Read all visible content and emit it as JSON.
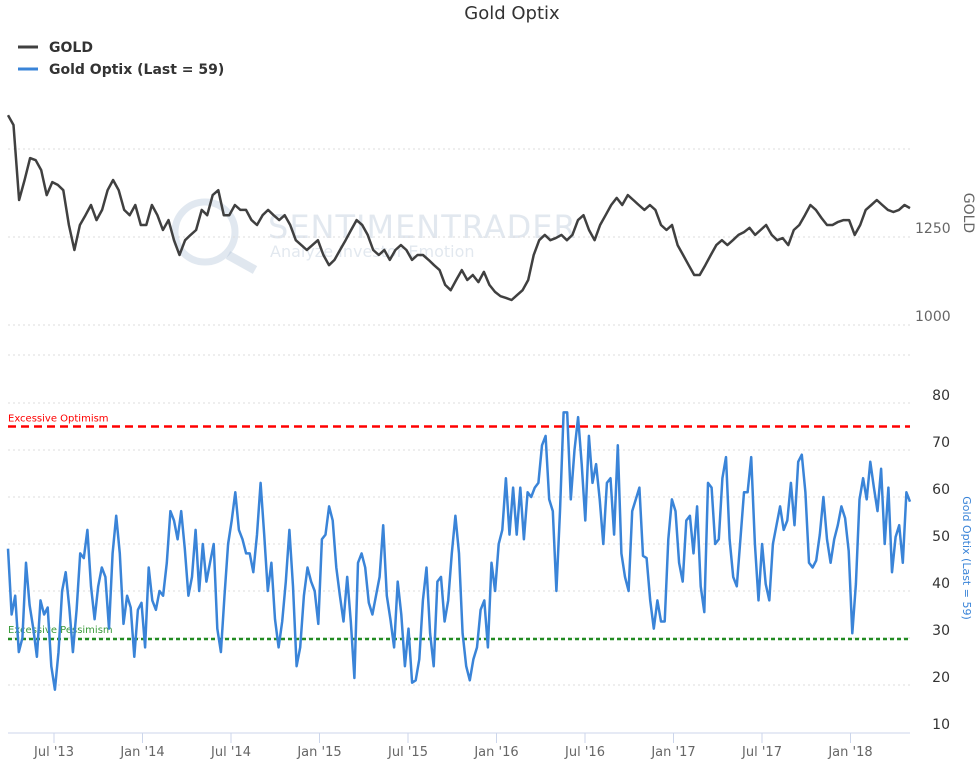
{
  "chart_data": {
    "type": "line",
    "title": "Gold Optix",
    "legend": [
      "GOLD",
      "Gold Optix (Last = 59)"
    ],
    "legend_position": "top-left",
    "x_range": [
      2013.27,
      2018.33
    ],
    "x_ticks": [
      {
        "label": "Jul '13",
        "t": 2013.5
      },
      {
        "label": "Jan '14",
        "t": 2014.0
      },
      {
        "label": "Jul '14",
        "t": 2014.5
      },
      {
        "label": "Jan '15",
        "t": 2015.0
      },
      {
        "label": "Jul '15",
        "t": 2015.5
      },
      {
        "label": "Jan '16",
        "t": 2016.0
      },
      {
        "label": "Jul '16",
        "t": 2016.5
      },
      {
        "label": "Jan '17",
        "t": 2017.0
      },
      {
        "label": "Jul '17",
        "t": 2017.5
      },
      {
        "label": "Jan '18",
        "t": 2018.0
      }
    ],
    "gold_axis": {
      "title": "GOLD",
      "ticks": [
        "1250",
        "1000"
      ],
      "tick_values": [
        1250,
        1000
      ],
      "grid": [
        1500,
        1250,
        1000
      ]
    },
    "optix_axis": {
      "title": "Gold Optix (Last = 59)",
      "ticks": [
        "80",
        "70",
        "60",
        "50",
        "40",
        "30",
        "20",
        "10"
      ],
      "tick_values": [
        80,
        70,
        60,
        50,
        40,
        30,
        20,
        10
      ],
      "range": [
        10,
        80
      ]
    },
    "annotations": {
      "optimism": {
        "label": "Excessive Optimism",
        "value": 75,
        "color": "#ff0000"
      },
      "pessimism": {
        "label": "Excessive Pessimism",
        "value": 30,
        "color": "#228b22"
      }
    },
    "series": [
      {
        "name": "GOLD",
        "color": "#404040",
        "values": [
          1596,
          1568,
          1355,
          1412,
          1474,
          1468,
          1440,
          1369,
          1406,
          1398,
          1383,
          1284,
          1213,
          1284,
          1312,
          1341,
          1298,
          1327,
          1383,
          1412,
          1383,
          1327,
          1312,
          1341,
          1284,
          1284,
          1341,
          1312,
          1270,
          1298,
          1241,
          1199,
          1241,
          1256,
          1270,
          1327,
          1312,
          1369,
          1383,
          1312,
          1312,
          1341,
          1327,
          1327,
          1298,
          1284,
          1312,
          1327,
          1312,
          1298,
          1312,
          1284,
          1241,
          1227,
          1213,
          1227,
          1241,
          1199,
          1170,
          1185,
          1213,
          1241,
          1270,
          1298,
          1284,
          1256,
          1213,
          1199,
          1213,
          1185,
          1213,
          1227,
          1213,
          1185,
          1199,
          1199,
          1185,
          1170,
          1156,
          1114,
          1099,
          1128,
          1156,
          1128,
          1142,
          1122,
          1151,
          1114,
          1094,
          1082,
          1077,
          1071,
          1085,
          1099,
          1128,
          1199,
          1241,
          1256,
          1241,
          1247,
          1256,
          1241,
          1256,
          1298,
          1312,
          1270,
          1241,
          1284,
          1312,
          1341,
          1361,
          1341,
          1369,
          1355,
          1341,
          1327,
          1341,
          1327,
          1284,
          1270,
          1284,
          1227,
          1199,
          1170,
          1142,
          1142,
          1170,
          1199,
          1227,
          1241,
          1227,
          1241,
          1256,
          1264,
          1276,
          1256,
          1270,
          1284,
          1256,
          1241,
          1247,
          1227,
          1270,
          1284,
          1312,
          1341,
          1327,
          1304,
          1284,
          1284,
          1293,
          1298,
          1298,
          1256,
          1284,
          1327,
          1341,
          1355,
          1341,
          1327,
          1321,
          1327,
          1341,
          1332
        ]
      },
      {
        "name": "Gold Optix",
        "color": "#3a84d8",
        "last": 59,
        "values": [
          49,
          35,
          39,
          27,
          30,
          46,
          37,
          32,
          26,
          38,
          35,
          36.5,
          24,
          19,
          27,
          40,
          44,
          36.5,
          27,
          36,
          48,
          47,
          53,
          41,
          34,
          41,
          45,
          43,
          32,
          48,
          56,
          48,
          33,
          39,
          36.5,
          26,
          36,
          37.5,
          28,
          45,
          38,
          36,
          40,
          39,
          46,
          57,
          55,
          51,
          57,
          49,
          39,
          43,
          53,
          40,
          50,
          42,
          46,
          50,
          32,
          27,
          39,
          50,
          55,
          61,
          53,
          51,
          48,
          48,
          44,
          52,
          63,
          52,
          40,
          46,
          34,
          28,
          33.5,
          42,
          53,
          41,
          24,
          28,
          39,
          45,
          42,
          40,
          33,
          51,
          52,
          58,
          55,
          45,
          39,
          33.5,
          43,
          33.5,
          21.5,
          46,
          48,
          45,
          37.5,
          35,
          39,
          43,
          54,
          39,
          34,
          28,
          42,
          35,
          24,
          32,
          20.5,
          21,
          25.5,
          38,
          45,
          31,
          24,
          42,
          43,
          33.5,
          38,
          48,
          56,
          48,
          31,
          24,
          21,
          25.5,
          28,
          36,
          38,
          28,
          46,
          40,
          50,
          53,
          64,
          52,
          62,
          52,
          62,
          51,
          61,
          60,
          62,
          63,
          71,
          73,
          59.5,
          57,
          40,
          57,
          78,
          78,
          59.5,
          70,
          77,
          67,
          55,
          73,
          63,
          67,
          59.5,
          50,
          63,
          64,
          52,
          71,
          48,
          43,
          40,
          57,
          59.5,
          62,
          47.5,
          47,
          38,
          32,
          38,
          33.5,
          33.5,
          51,
          59.5,
          57,
          46,
          42,
          55,
          56,
          48,
          58,
          41,
          35.5,
          63,
          62,
          50,
          51,
          64,
          68.5,
          51,
          43,
          41,
          51,
          61,
          61,
          68.5,
          50,
          38,
          50,
          41.5,
          38,
          50,
          54,
          58,
          53,
          55,
          63,
          54,
          67.5,
          69,
          61,
          46,
          45,
          46.5,
          52,
          60,
          51,
          46,
          51,
          54,
          58,
          55.5,
          48.5,
          31,
          41.5,
          59.5,
          64,
          59.5,
          67.5,
          62,
          57,
          66,
          50,
          62,
          44,
          51.5,
          54,
          46,
          61,
          59
        ]
      }
    ]
  },
  "watermark": {
    "brand": "SENTIMENTRADER",
    "tagline": "Analyze Investor Emotion"
  }
}
